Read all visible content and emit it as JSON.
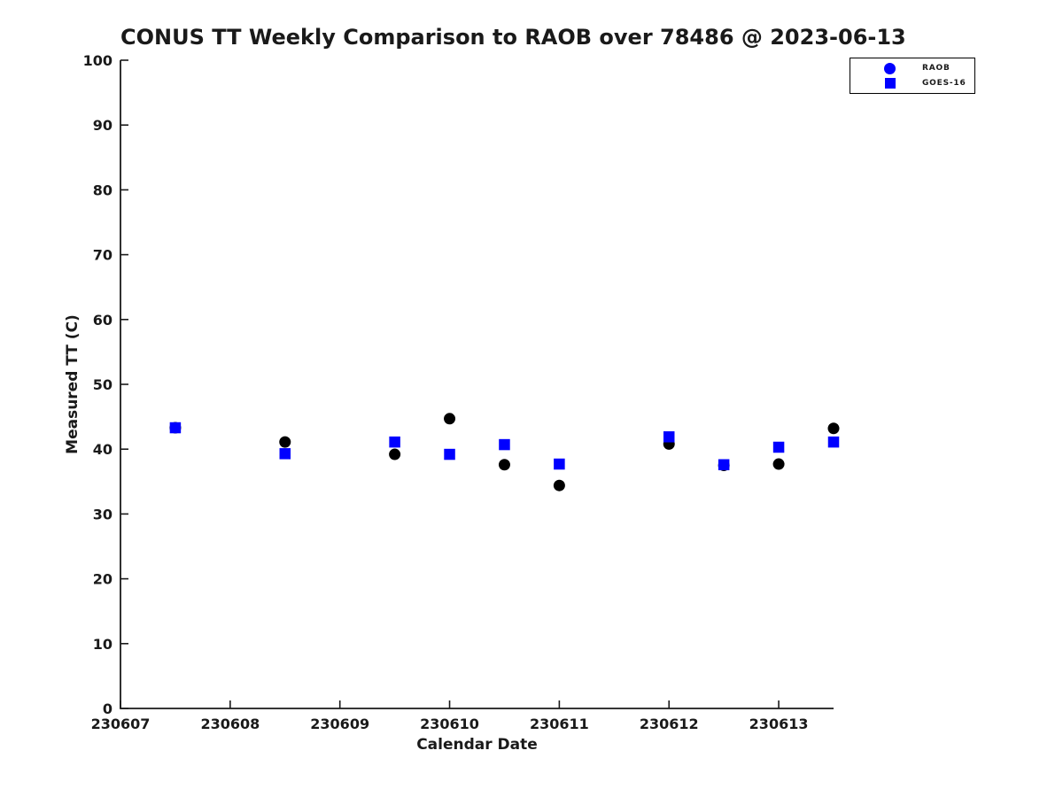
{
  "title": "CONUS TT Weekly Comparison to RAOB over 78486 @ 2023-06-13",
  "axes": {
    "xlabel": "Calendar Date",
    "ylabel": "Measured TT (C)"
  },
  "legend": {
    "entries": [
      {
        "label": "RAOB",
        "marker": "circle",
        "color": "#0000ff"
      },
      {
        "label": "GOES-16",
        "marker": "square",
        "color": "#0000ff"
      }
    ]
  },
  "colors": {
    "raob_points": "#000000",
    "goes16_points": "#0000ff",
    "text": "#1a1a1a",
    "axis": "#1a1a1a",
    "background": "#ffffff"
  },
  "chart_data": {
    "type": "scatter",
    "title": "CONUS TT Weekly Comparison to RAOB over 78486 @ 2023-06-13",
    "xlabel": "Calendar Date",
    "ylabel": "Measured TT (C)",
    "xlim": [
      230607,
      230613.5
    ],
    "ylim": [
      0,
      100
    ],
    "x_ticks": [
      230607,
      230608,
      230609,
      230610,
      230611,
      230612,
      230613
    ],
    "y_ticks": [
      0,
      10,
      20,
      30,
      40,
      50,
      60,
      70,
      80,
      90,
      100
    ],
    "grid": false,
    "legend_position": "outside-top-right",
    "series": [
      {
        "name": "RAOB",
        "marker": "circle",
        "color": "#000000",
        "legend_color": "#0000ff",
        "size": 13,
        "x": [
          230607.5,
          230608.5,
          230609.5,
          230610,
          230610.5,
          230611,
          230612,
          230612.5,
          230613,
          230613.5
        ],
        "y": [
          43.3,
          41.1,
          39.2,
          44.7,
          37.6,
          34.4,
          40.8,
          37.5,
          37.7,
          43.2
        ]
      },
      {
        "name": "GOES-16",
        "marker": "square",
        "color": "#0000ff",
        "legend_color": "#0000ff",
        "size": 12.5,
        "x": [
          230607.5,
          230608.5,
          230609.5,
          230610,
          230610.5,
          230611,
          230612,
          230612.5,
          230613,
          230613.5
        ],
        "y": [
          43.3,
          39.3,
          41.1,
          39.2,
          40.7,
          37.7,
          41.9,
          37.6,
          40.3,
          41.1
        ]
      }
    ]
  }
}
